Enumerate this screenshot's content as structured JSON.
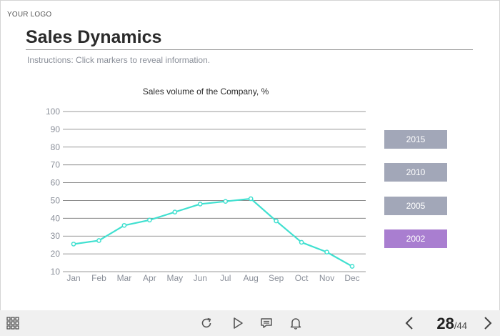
{
  "header": {
    "logo": "YOUR LOGO",
    "title": "Sales Dynamics",
    "instructions": "Instructions: Click markers to reveal information."
  },
  "chart_data": {
    "type": "line",
    "title": "Sales volume of the Company, %",
    "categories": [
      "Jan",
      "Feb",
      "Mar",
      "Apr",
      "May",
      "Jun",
      "Jul",
      "Aug",
      "Sep",
      "Oct",
      "Nov",
      "Dec"
    ],
    "series": [
      {
        "values": [
          25.5,
          27.5,
          36,
          39,
          43.5,
          48,
          49.5,
          51,
          38.5,
          26.5,
          21,
          13
        ]
      }
    ],
    "ylim": [
      10,
      100
    ],
    "yticks": [
      10,
      20,
      30,
      40,
      50,
      60,
      70,
      80,
      90,
      100
    ],
    "grid": true,
    "line_color": "#40e0d0",
    "grid_color": "#777777"
  },
  "legend": {
    "items": [
      {
        "label": "2015",
        "active": false
      },
      {
        "label": "2010",
        "active": false
      },
      {
        "label": "2005",
        "active": false
      },
      {
        "label": "2002",
        "active": true
      }
    ],
    "inactive_color": "#a2a7b8",
    "active_color": "#a97ed0"
  },
  "toolbar": {
    "menu_icon": "grid-menu-icon",
    "replay_icon": "replay-icon",
    "play_icon": "play-icon",
    "notes_icon": "notes-icon",
    "bell_icon": "bell-icon",
    "prev_icon": "chevron-left-icon",
    "next_icon": "chevron-right-icon",
    "page_current": "28",
    "page_separator": "/",
    "page_total": "44"
  }
}
